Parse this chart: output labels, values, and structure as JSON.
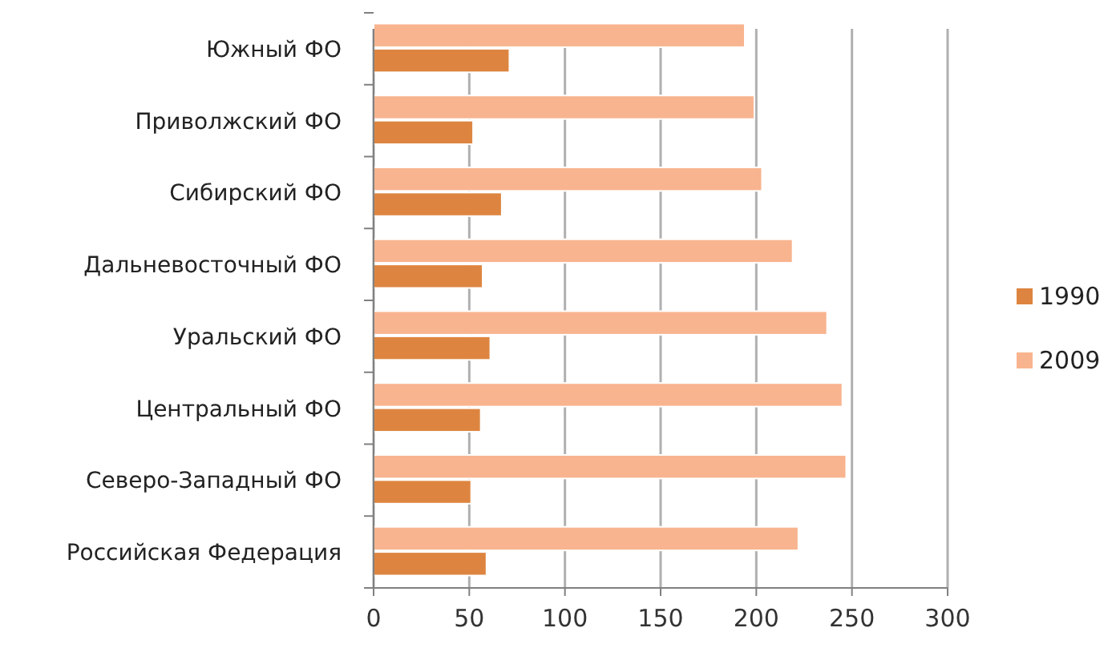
{
  "chart_data": {
    "type": "bar",
    "orientation": "horizontal",
    "categories": [
      "Южный ФО",
      "Приволжский ФО",
      "Сибирский ФО",
      "Дальневосточный ФО",
      "Уральский ФО",
      "Центральный ФО",
      "Северо-Западный ФО",
      "Российская Федерация"
    ],
    "series": [
      {
        "name": "2009",
        "color": "#f8b48f",
        "values": [
          194,
          199,
          203,
          219,
          237,
          245,
          247,
          222
        ]
      },
      {
        "name": "1990",
        "color": "#dd8540",
        "values": [
          71,
          52,
          67,
          57,
          61,
          56,
          51,
          59
        ]
      }
    ],
    "xlim": [
      0,
      300
    ],
    "xticks": [
      0,
      50,
      100,
      150,
      200,
      250,
      300
    ],
    "grid": "x",
    "legend": "right"
  }
}
